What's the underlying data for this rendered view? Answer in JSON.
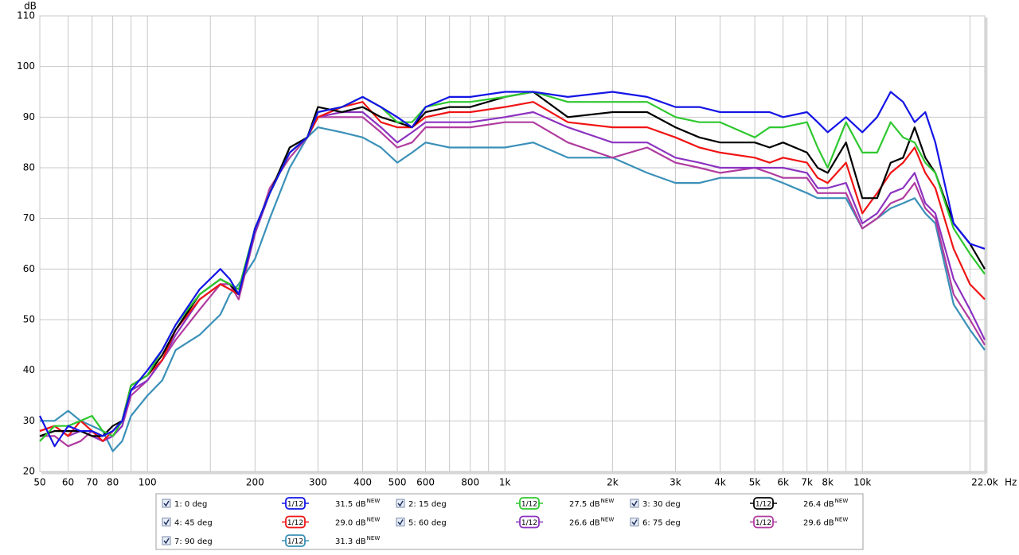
{
  "chart_data": {
    "type": "line",
    "x_label": "Hz",
    "y_label": "dB",
    "x": [
      50,
      55,
      60,
      65,
      70,
      75,
      80,
      85,
      90,
      100,
      110,
      120,
      140,
      160,
      170,
      180,
      200,
      220,
      250,
      280,
      300,
      350,
      400,
      450,
      500,
      550,
      600,
      700,
      800,
      1000,
      1200,
      1500,
      2000,
      2500,
      3000,
      3500,
      4000,
      5000,
      5500,
      6000,
      7000,
      7500,
      8000,
      9000,
      10000,
      11000,
      12000,
      13000,
      14000,
      15000,
      16000,
      18000,
      20000,
      22000
    ],
    "xlim": [
      50,
      22000
    ],
    "ylim": [
      20,
      110
    ],
    "xlog": true,
    "grid": true,
    "xticks": [
      50,
      60,
      70,
      80,
      100,
      200,
      300,
      400,
      500,
      600,
      800,
      {
        "value": 1000,
        "label": "1k"
      },
      {
        "value": 2000,
        "label": "2k"
      },
      {
        "value": 3000,
        "label": "3k"
      },
      {
        "value": 4000,
        "label": "4k"
      },
      {
        "value": 5000,
        "label": "5k"
      },
      {
        "value": 6000,
        "label": "6k"
      },
      {
        "value": 7000,
        "label": "7k"
      },
      {
        "value": 8000,
        "label": "8k"
      },
      {
        "value": 10000,
        "label": "10k"
      },
      {
        "value": 22000,
        "label": "22.0k"
      }
    ],
    "xgrid_minor": [
      90,
      150,
      700,
      900,
      9000,
      20000
    ],
    "yticks": [
      20,
      30,
      40,
      50,
      60,
      70,
      80,
      90,
      100,
      110
    ],
    "series": [
      {
        "name": "1: 0 deg",
        "color": "#1414e6",
        "smoothing": "1/12",
        "level": "31.5 dB",
        "badge": "NEW",
        "values": [
          31,
          25,
          29,
          28,
          28,
          27,
          28,
          30,
          36,
          40,
          44,
          49,
          56,
          60,
          58,
          55,
          68,
          75,
          83,
          86,
          91,
          92,
          94,
          92,
          90,
          88,
          92,
          94,
          94,
          95,
          95,
          94,
          95,
          94,
          92,
          92,
          91,
          91,
          91,
          90,
          91,
          89,
          87,
          90,
          87,
          90,
          95,
          93,
          89,
          91,
          85,
          69,
          65,
          64
        ]
      },
      {
        "name": "2: 15 deg",
        "color": "#2ec82e",
        "smoothing": "1/12",
        "level": "27.5 dB",
        "badge": "NEW",
        "values": [
          26,
          29,
          29,
          30,
          31,
          28,
          27,
          30,
          37,
          39,
          44,
          49,
          55,
          58,
          57,
          56,
          68,
          75,
          83,
          86,
          91,
          92,
          94,
          92,
          89,
          89,
          92,
          93,
          93,
          94,
          95,
          93,
          93,
          93,
          90,
          89,
          89,
          86,
          88,
          88,
          89,
          84,
          80,
          89,
          83,
          83,
          89,
          86,
          85,
          81,
          79,
          68,
          63,
          59
        ]
      },
      {
        "name": "3: 30 deg",
        "color": "#000000",
        "smoothing": "1/12",
        "level": "26.4 dB",
        "badge": "NEW",
        "values": [
          27,
          28,
          28,
          28,
          27,
          27,
          29,
          30,
          37,
          39,
          43,
          48,
          55,
          58,
          57,
          55,
          68,
          75,
          84,
          86,
          92,
          91,
          92,
          90,
          89,
          88,
          91,
          92,
          92,
          94,
          95,
          90,
          91,
          91,
          88,
          86,
          85,
          85,
          84,
          85,
          83,
          80,
          79,
          85,
          74,
          74,
          81,
          82,
          88,
          82,
          79,
          69,
          65,
          60
        ]
      },
      {
        "name": "4: 45 deg",
        "color": "#f01414",
        "smoothing": "1/12",
        "level": "29.0 dB",
        "badge": "NEW",
        "values": [
          28,
          29,
          27,
          30,
          28,
          26,
          28,
          30,
          37,
          39,
          42,
          48,
          54,
          57,
          56,
          55,
          68,
          75,
          83,
          86,
          90,
          92,
          93,
          89,
          88,
          88,
          90,
          91,
          91,
          92,
          93,
          89,
          88,
          88,
          86,
          84,
          83,
          82,
          81,
          82,
          81,
          78,
          77,
          81,
          71,
          75,
          79,
          81,
          84,
          79,
          76,
          64,
          57,
          54
        ]
      },
      {
        "name": "5: 60 deg",
        "color": "#8c32c0",
        "smoothing": "1/12",
        "level": "26.6 dB",
        "badge": "NEW",
        "values": [
          28,
          29,
          27,
          28,
          27,
          26,
          27,
          29,
          36,
          38,
          42,
          47,
          54,
          57,
          56,
          55,
          67,
          75,
          83,
          86,
          90,
          91,
          91,
          88,
          85,
          87,
          89,
          89,
          89,
          90,
          91,
          88,
          85,
          85,
          82,
          81,
          80,
          80,
          80,
          80,
          79,
          76,
          76,
          77,
          69,
          71,
          75,
          76,
          79,
          73,
          71,
          58,
          52,
          46
        ]
      },
      {
        "name": "6: 75 deg",
        "color": "#b03ca0",
        "smoothing": "1/12",
        "level": "29.6 dB",
        "badge": "NEW",
        "values": [
          27,
          27,
          25,
          26,
          28,
          26,
          27,
          29,
          35,
          38,
          42,
          46,
          52,
          57,
          57,
          54,
          67,
          76,
          82,
          86,
          90,
          90,
          90,
          87,
          84,
          85,
          88,
          88,
          88,
          89,
          89,
          85,
          82,
          84,
          81,
          80,
          79,
          80,
          79,
          78,
          78,
          75,
          75,
          75,
          68,
          70,
          73,
          74,
          77,
          72,
          70,
          55,
          50,
          45
        ]
      },
      {
        "name": "7: 90 deg",
        "color": "#3a90b8",
        "smoothing": "1/12",
        "level": "31.3 dB",
        "badge": "NEW",
        "values": [
          30,
          30,
          32,
          30,
          29,
          28,
          24,
          26,
          31,
          35,
          38,
          44,
          47,
          51,
          55,
          57,
          62,
          70,
          80,
          86,
          88,
          87,
          86,
          84,
          81,
          83,
          85,
          84,
          84,
          84,
          85,
          82,
          82,
          79,
          77,
          77,
          78,
          78,
          78,
          77,
          75,
          74,
          74,
          74,
          68,
          70,
          72,
          73,
          74,
          71,
          69,
          53,
          48,
          44
        ]
      }
    ]
  }
}
